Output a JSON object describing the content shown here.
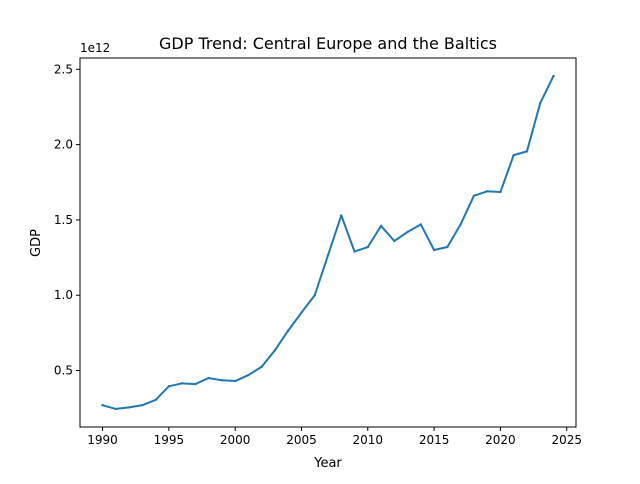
{
  "chart_data": {
    "type": "line",
    "title": "GDP Trend: Central Europe and the Baltics",
    "xlabel": "Year",
    "ylabel": "GDP",
    "y_offset_label": "1e12",
    "xlim": [
      1988.3,
      2025.7
    ],
    "ylim": [
      0.125,
      2.575
    ],
    "y_scale_factor": 1000000000000.0,
    "x_ticks": [
      1990,
      1995,
      2000,
      2005,
      2010,
      2015,
      2020,
      2025
    ],
    "x_tick_labels": [
      "1990",
      "1995",
      "2000",
      "2005",
      "2010",
      "2015",
      "2020",
      "2025"
    ],
    "y_ticks": [
      0.5,
      1.0,
      1.5,
      2.0,
      2.5
    ],
    "y_tick_labels": [
      "0.5",
      "1.0",
      "1.5",
      "2.0",
      "2.5"
    ],
    "grid": false,
    "series": [
      {
        "color": "#1f77b4",
        "x": [
          1990,
          1991,
          1992,
          1993,
          1994,
          1995,
          1996,
          1997,
          1998,
          1999,
          2000,
          2001,
          2002,
          2003,
          2004,
          2005,
          2006,
          2007,
          2008,
          2009,
          2010,
          2011,
          2012,
          2013,
          2014,
          2015,
          2016,
          2017,
          2018,
          2019,
          2020,
          2021,
          2022,
          2023,
          2024
        ],
        "y": [
          0.27,
          0.245,
          0.255,
          0.27,
          0.305,
          0.395,
          0.415,
          0.41,
          0.45,
          0.435,
          0.43,
          0.47,
          0.525,
          0.635,
          0.765,
          0.885,
          1.0,
          1.265,
          1.53,
          1.29,
          1.32,
          1.46,
          1.36,
          1.42,
          1.47,
          1.3,
          1.32,
          1.47,
          1.66,
          1.69,
          1.685,
          1.93,
          1.955,
          2.275,
          2.455
        ]
      }
    ]
  }
}
